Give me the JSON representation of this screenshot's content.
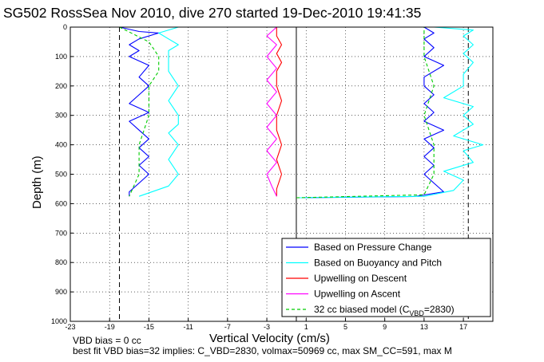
{
  "chart_data": {
    "type": "line",
    "title": "SG502 RossSea Nov 2010, dive 270 started 19-Dec-2010 19:41:35",
    "xlabel": "Vertical Velocity (cm/s)",
    "ylabel": "Depth (m)",
    "xlim": [
      -23,
      20
    ],
    "ylim": [
      1000,
      0
    ],
    "x_ticks": [
      "-23",
      "-19",
      "-15",
      "-11",
      "-7",
      "-3",
      "1",
      "5",
      "9",
      "13",
      "17"
    ],
    "y_ticks": [
      "0",
      "100",
      "200",
      "300",
      "400",
      "500",
      "600",
      "700",
      "800",
      "900",
      "1000"
    ],
    "grid": true,
    "legend_position": "bottom-right",
    "colors": {
      "pressure": "#0000ff",
      "buoyancy": "#00ffff",
      "upwelling_descent": "#ff0000",
      "upwelling_ascent": "#ff00ff",
      "biased_model": "#00cc00",
      "reference": "#000000"
    },
    "legend": [
      {
        "label": "Based on Pressure Change",
        "color": "#0000ff",
        "style": "solid"
      },
      {
        "label": "Based on Buoyancy and Pitch",
        "color": "#00ffff",
        "style": "solid"
      },
      {
        "label": "Upwelling on Descent",
        "color": "#ff0000",
        "style": "solid"
      },
      {
        "label": "Upwelling on Ascent",
        "color": "#ff00ff",
        "style": "solid"
      },
      {
        "label_main": "32 cc biased model (C",
        "label_sub": "VBD",
        "label_tail": "=2830)",
        "color": "#00cc00",
        "style": "dashed"
      }
    ],
    "reference_lines": [
      {
        "x": -18,
        "style": "dashed"
      },
      {
        "x": 0,
        "style": "solid"
      },
      {
        "x": 17.5,
        "style": "dashed"
      }
    ],
    "series": [
      {
        "name": "Based on Pressure Change",
        "descent": [
          [
            -18,
            0
          ],
          [
            -16,
            15
          ],
          [
            -14,
            20
          ],
          [
            -16,
            40
          ],
          [
            -17,
            60
          ],
          [
            -16,
            80
          ],
          [
            -17,
            100
          ],
          [
            -15,
            130
          ],
          [
            -16,
            170
          ],
          [
            -15,
            200
          ],
          [
            -16,
            230
          ],
          [
            -17,
            260
          ],
          [
            -15,
            290
          ],
          [
            -17,
            320
          ],
          [
            -16,
            350
          ],
          [
            -15,
            380
          ],
          [
            -16,
            410
          ],
          [
            -15,
            440
          ],
          [
            -16,
            470
          ],
          [
            -15,
            500
          ],
          [
            -16,
            530
          ],
          [
            -17,
            560
          ],
          [
            -17,
            575
          ]
        ],
        "ascent": [
          [
            0.5,
            580
          ],
          [
            12,
            576
          ],
          [
            15,
            560
          ],
          [
            14,
            530
          ],
          [
            13,
            500
          ],
          [
            14,
            470
          ],
          [
            13,
            440
          ],
          [
            14,
            410
          ],
          [
            13,
            380
          ],
          [
            15,
            350
          ],
          [
            13,
            320
          ],
          [
            14,
            290
          ],
          [
            13,
            260
          ],
          [
            14,
            230
          ],
          [
            13,
            200
          ],
          [
            13,
            170
          ],
          [
            15,
            130
          ],
          [
            13,
            100
          ],
          [
            14,
            70
          ],
          [
            13,
            40
          ],
          [
            14,
            20
          ],
          [
            13,
            0
          ]
        ]
      },
      {
        "name": "Based on Buoyancy and Pitch",
        "descent": [
          [
            -12,
            0
          ],
          [
            -14,
            20
          ],
          [
            -13,
            40
          ],
          [
            -12,
            60
          ],
          [
            -13,
            80
          ],
          [
            -13,
            100
          ],
          [
            -13,
            150
          ],
          [
            -12,
            200
          ],
          [
            -13,
            250
          ],
          [
            -12,
            300
          ],
          [
            -12,
            330
          ],
          [
            -13,
            360
          ],
          [
            -12,
            400
          ],
          [
            -13,
            450
          ],
          [
            -12,
            500
          ],
          [
            -13,
            540
          ],
          [
            -16,
            575
          ]
        ],
        "ascent": [
          [
            0,
            580
          ],
          [
            13,
            575
          ],
          [
            16,
            555
          ],
          [
            17,
            520
          ],
          [
            15,
            490
          ],
          [
            18,
            460
          ],
          [
            17,
            420
          ],
          [
            19,
            400
          ],
          [
            16,
            370
          ],
          [
            18,
            330
          ],
          [
            17,
            300
          ],
          [
            18,
            270
          ],
          [
            15,
            240
          ],
          [
            17,
            200
          ],
          [
            17,
            160
          ],
          [
            18,
            120
          ],
          [
            17,
            90
          ],
          [
            18,
            60
          ],
          [
            17,
            30
          ],
          [
            18,
            10
          ],
          [
            14,
            0
          ]
        ]
      },
      {
        "name": "Upwelling on Descent",
        "descent": [
          [
            -2,
            0
          ],
          [
            -2,
            30
          ],
          [
            -1.5,
            60
          ],
          [
            -2,
            90
          ],
          [
            -1.5,
            120
          ],
          [
            -2,
            150
          ],
          [
            -2,
            200
          ],
          [
            -1.5,
            250
          ],
          [
            -2,
            300
          ],
          [
            -2,
            350
          ],
          [
            -1.5,
            400
          ],
          [
            -2,
            450
          ],
          [
            -1.5,
            500
          ],
          [
            -2,
            550
          ],
          [
            -2,
            575
          ]
        ]
      },
      {
        "name": "Upwelling on Ascent",
        "ascent": [
          [
            -2,
            575
          ],
          [
            -2.5,
            540
          ],
          [
            -3,
            500
          ],
          [
            -2,
            460
          ],
          [
            -3,
            420
          ],
          [
            -2,
            380
          ],
          [
            -3,
            340
          ],
          [
            -2,
            300
          ],
          [
            -3,
            260
          ],
          [
            -2,
            220
          ],
          [
            -3,
            180
          ],
          [
            -2,
            140
          ],
          [
            -3,
            100
          ],
          [
            -2,
            60
          ],
          [
            -3,
            30
          ],
          [
            -2,
            0
          ]
        ]
      },
      {
        "name": "32 cc biased model (CVBD=2830)",
        "descent": [
          [
            -18,
            0
          ],
          [
            -15,
            50
          ],
          [
            -14,
            100
          ],
          [
            -14,
            150
          ],
          [
            -15,
            200
          ],
          [
            -15,
            300
          ],
          [
            -16,
            400
          ],
          [
            -16,
            500
          ],
          [
            -17,
            575
          ]
        ],
        "ascent": [
          [
            0,
            580
          ],
          [
            13,
            570
          ],
          [
            14,
            500
          ],
          [
            14,
            400
          ],
          [
            13,
            300
          ],
          [
            14,
            200
          ],
          [
            13,
            100
          ],
          [
            13,
            0
          ]
        ]
      }
    ]
  },
  "footer": {
    "line1": "VBD bias = 0 cc",
    "line2": "best fit VBD bias=32 implies: C_VBD=2830, volmax=50969 cc, max SM_CC=591, max M"
  }
}
